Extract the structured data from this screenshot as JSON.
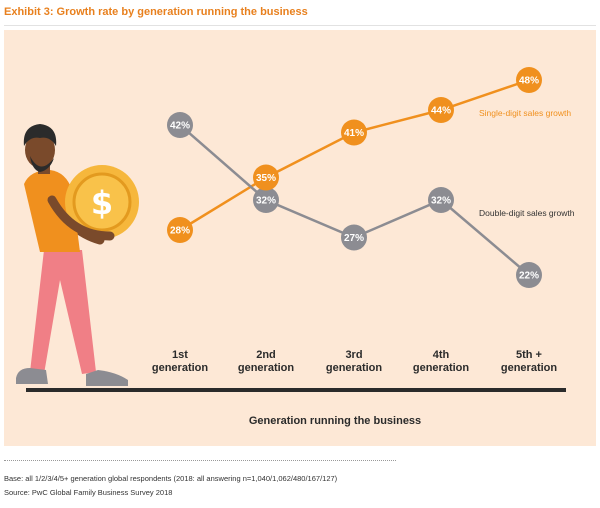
{
  "title": "Exhibit 3: Growth rate by generation running the business",
  "colors": {
    "background": "#fde8d6",
    "single_digit": "#f0901e",
    "double_digit": "#8c8c92",
    "title": "#e8801e"
  },
  "chart_data": {
    "type": "line",
    "title": "Exhibit 3: Growth rate by generation running the business",
    "xlabel": "Generation running the business",
    "ylabel": "",
    "categories": [
      "1st\ngeneration",
      "2nd\ngeneration",
      "3rd\ngeneration",
      "4th\ngeneration",
      "5th +\ngeneration"
    ],
    "series": [
      {
        "name": "Single-digit sales growth",
        "values": [
          28,
          35,
          41,
          44,
          48
        ],
        "labels": [
          "28%",
          "35%",
          "41%",
          "44%",
          "48%"
        ]
      },
      {
        "name": "Double-digit sales growth",
        "values": [
          42,
          32,
          27,
          32,
          22
        ],
        "labels": [
          "42%",
          "32%",
          "27%",
          "32%",
          "22%"
        ]
      }
    ],
    "grid": false,
    "legend": "inline-right"
  },
  "icons": [
    "person-carrying-coin-icon",
    "dollar-coin-icon"
  ],
  "footer": {
    "base": "Base: all 1/2/3/4/5+ generation global respondents (2018: all answering n=1,040/1,062/480/167/127)",
    "source": "Source: PwC Global Family Business Survey 2018"
  }
}
